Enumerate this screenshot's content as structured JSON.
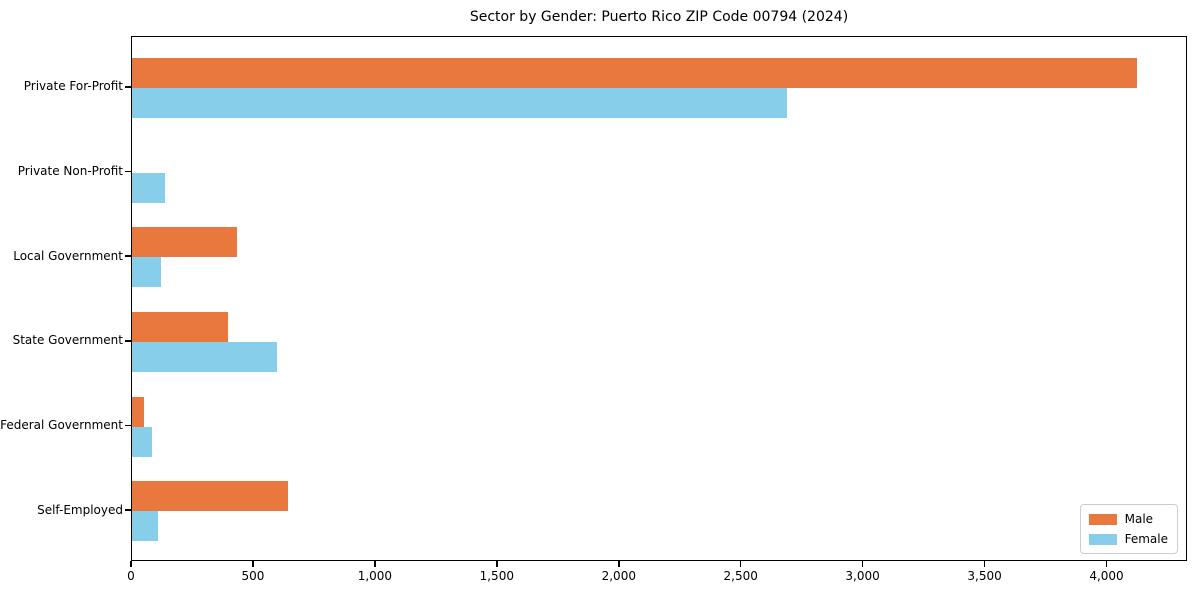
{
  "chart_data": {
    "type": "bar",
    "orientation": "horizontal",
    "title": "Sector by Gender: Puerto Rico ZIP Code 00794 (2024)",
    "categories": [
      "Private For-Profit",
      "Private Non-Profit",
      "Local Government",
      "State Government",
      "Federal Government",
      "Self-Employed"
    ],
    "series": [
      {
        "name": "Male",
        "color": "#e8783e",
        "values": [
          4120,
          0,
          430,
          395,
          50,
          640
        ]
      },
      {
        "name": "Female",
        "color": "#87ceeb",
        "values": [
          2685,
          135,
          120,
          595,
          80,
          105
        ]
      }
    ],
    "xlabel": "",
    "ylabel": "",
    "xlim": [
      0,
      4330
    ],
    "x_ticks": [
      0,
      500,
      1000,
      1500,
      2000,
      2500,
      3000,
      3500,
      4000
    ],
    "x_tick_labels": [
      "0",
      "500",
      "1,000",
      "1,500",
      "2,000",
      "2,500",
      "3,000",
      "3,500",
      "4,000"
    ],
    "grid": false,
    "legend": {
      "position": "lower right",
      "entries": [
        "Male",
        "Female"
      ]
    },
    "colors": {
      "male": "#e8783e",
      "female": "#87ceeb",
      "spine": "#000000",
      "text": "#000000",
      "legend_border": "#cccccc",
      "background": "#ffffff"
    }
  }
}
